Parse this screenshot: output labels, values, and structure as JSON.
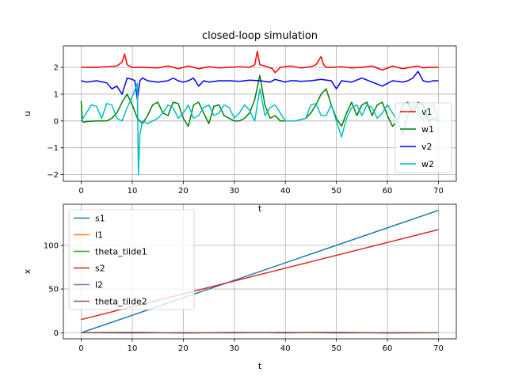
{
  "chart_data": [
    {
      "type": "line",
      "title": "closed-loop simulation",
      "xlabel": "t",
      "ylabel": "u",
      "xlim": [
        -3.5,
        73.5
      ],
      "ylim": [
        -2.25,
        2.8
      ],
      "xticks": [
        0,
        10,
        20,
        30,
        40,
        50,
        60,
        70
      ],
      "yticks": [
        -2,
        -1,
        0,
        1,
        2
      ],
      "xtick_labels": [
        "0",
        "10",
        "20",
        "30",
        "40",
        "50",
        "60",
        "70"
      ],
      "ytick_labels": [
        "−2",
        "−1",
        "0",
        "1",
        "2"
      ],
      "grid": true,
      "legend_position": "lower-right",
      "series": [
        {
          "name": "v1",
          "color": "#ff0000",
          "x": [
            0,
            3,
            5,
            7,
            8,
            8.5,
            9,
            10,
            12,
            15,
            17,
            19,
            21,
            23,
            25,
            27,
            29,
            31,
            33,
            34,
            34.5,
            35,
            36,
            37.5,
            38,
            39,
            41,
            43,
            45,
            46,
            47,
            47.5,
            48,
            49,
            51,
            53,
            55,
            57,
            59,
            61,
            63,
            65,
            66,
            67,
            68,
            70
          ],
          "y": [
            2.0,
            2.0,
            2.02,
            2.05,
            2.2,
            2.5,
            2.1,
            2.0,
            2.0,
            1.98,
            2.05,
            1.95,
            2.05,
            1.95,
            2.02,
            1.98,
            2.0,
            2.02,
            2.0,
            2.1,
            2.6,
            2.1,
            2.05,
            1.95,
            1.8,
            2.0,
            2.05,
            1.98,
            2.02,
            2.1,
            2.4,
            2.1,
            2.0,
            2.0,
            2.02,
            1.98,
            2.0,
            2.05,
            1.9,
            2.05,
            1.95,
            2.02,
            2.05,
            1.98,
            2.0,
            2.0
          ]
        },
        {
          "name": "w1",
          "color": "#008000",
          "x": [
            0,
            0.2,
            0.5,
            1,
            3,
            5,
            6,
            7,
            8,
            9,
            10,
            11,
            12,
            13,
            14,
            15,
            16,
            17,
            18,
            19,
            20,
            21,
            22,
            23,
            24,
            25,
            26,
            27,
            28,
            29,
            30,
            31,
            32,
            33,
            34,
            35,
            36,
            37,
            38,
            39,
            40,
            41,
            42,
            43,
            44,
            45,
            46,
            47,
            48,
            49,
            50,
            51,
            52,
            53,
            54,
            55,
            56,
            57,
            58,
            59,
            60,
            61,
            62,
            63,
            64,
            65,
            66,
            67,
            68,
            69,
            70
          ],
          "y": [
            0.75,
            0.0,
            -0.05,
            -0.02,
            0.0,
            0.0,
            0.1,
            0.3,
            0.7,
            1.0,
            0.6,
            0.1,
            -0.1,
            0.2,
            0.6,
            0.7,
            0.3,
            0.2,
            0.7,
            0.65,
            0.1,
            -0.2,
            0.6,
            0.7,
            0.3,
            -0.1,
            0.55,
            0.6,
            0.2,
            0.1,
            0.0,
            0.0,
            0.1,
            0.3,
            0.8,
            1.7,
            0.6,
            0.1,
            0.2,
            0.0,
            0.0,
            0.0,
            0.0,
            0.05,
            0.1,
            0.3,
            0.6,
            1.0,
            1.2,
            0.6,
            0.1,
            -0.2,
            0.3,
            0.7,
            0.2,
            0.6,
            0.7,
            0.2,
            0.6,
            0.7,
            0.2,
            -0.2,
            0.0,
            0.6,
            0.7,
            0.3,
            0.7,
            0.6,
            0.0,
            0.1,
            0.0
          ]
        },
        {
          "name": "v2",
          "color": "#0000ff",
          "x": [
            0,
            1,
            3,
            5,
            6,
            7,
            8,
            9,
            10,
            10.5,
            11,
            11.5,
            12,
            13,
            15,
            17,
            18,
            19,
            20,
            21,
            22,
            23,
            24,
            25,
            27,
            29,
            31,
            33,
            35,
            37,
            38,
            39,
            40,
            41,
            42,
            43,
            45,
            47,
            49,
            50,
            51,
            53,
            55,
            57,
            59,
            61,
            63,
            64,
            65,
            66,
            67,
            68,
            69,
            70
          ],
          "y": [
            1.5,
            1.45,
            1.5,
            1.42,
            1.2,
            1.3,
            1.0,
            1.6,
            1.55,
            1.5,
            0.8,
            1.5,
            1.6,
            1.5,
            1.45,
            1.5,
            1.6,
            1.5,
            1.45,
            1.5,
            1.6,
            1.3,
            1.5,
            1.45,
            1.5,
            1.5,
            1.48,
            1.52,
            1.5,
            1.45,
            1.55,
            1.5,
            1.45,
            1.5,
            1.5,
            1.48,
            1.5,
            1.55,
            1.5,
            1.2,
            1.5,
            1.45,
            1.6,
            1.45,
            1.3,
            1.5,
            1.45,
            1.5,
            1.6,
            1.85,
            1.5,
            1.45,
            1.5,
            1.5
          ]
        },
        {
          "name": "w2",
          "color": "#00bfbf",
          "x": [
            0,
            0.5,
            1,
            2,
            3,
            4,
            5,
            6,
            7,
            8,
            9,
            10,
            11,
            11.2,
            11.5,
            12,
            13,
            14,
            15,
            16,
            17,
            18,
            19,
            20,
            21,
            22,
            23,
            24,
            25,
            26,
            27,
            28,
            29,
            30,
            31,
            32,
            33,
            34,
            35,
            36,
            37,
            38,
            39,
            40,
            41,
            42,
            43,
            44,
            45,
            46,
            47,
            48,
            49,
            50,
            51,
            52,
            53,
            54,
            55,
            56,
            57,
            58,
            59,
            60,
            61,
            62,
            63,
            64,
            65,
            66,
            67,
            68,
            69,
            70
          ],
          "y": [
            0.0,
            0.15,
            0.3,
            0.6,
            0.55,
            0.1,
            0.65,
            0.6,
            0.1,
            0.0,
            0.5,
            0.9,
            1.4,
            -2.0,
            -0.5,
            0.0,
            -0.1,
            0.0,
            0.1,
            0.3,
            0.6,
            0.5,
            0.1,
            0.3,
            0.6,
            0.1,
            0.2,
            0.5,
            0.6,
            0.2,
            0.3,
            0.6,
            0.5,
            0.1,
            0.3,
            0.6,
            0.4,
            0.0,
            1.2,
            0.2,
            0.5,
            0.6,
            0.3,
            0.0,
            0.0,
            0.0,
            0.05,
            0.1,
            0.6,
            0.65,
            0.2,
            0.2,
            0.6,
            0.0,
            -0.6,
            0.1,
            0.5,
            0.6,
            0.2,
            0.6,
            0.5,
            0.1,
            0.3,
            0.6,
            0.3,
            0.0,
            -0.5,
            0.2,
            0.6,
            0.5,
            0.0,
            0.5,
            0.6,
            0.0
          ]
        }
      ]
    },
    {
      "type": "line",
      "title": "",
      "xlabel": "t",
      "ylabel": "x",
      "xlim": [
        -3.5,
        73.5
      ],
      "ylim": [
        -7,
        147
      ],
      "xticks": [
        0,
        10,
        20,
        30,
        40,
        50,
        60,
        70
      ],
      "yticks": [
        0,
        50,
        100
      ],
      "xtick_labels": [
        "0",
        "10",
        "20",
        "30",
        "40",
        "50",
        "60",
        "70"
      ],
      "ytick_labels": [
        "0",
        "50",
        "100"
      ],
      "grid": true,
      "legend_position": "upper-left",
      "series": [
        {
          "name": "s1",
          "color": "#1f77b4",
          "x": [
            0,
            70
          ],
          "y": [
            0,
            140
          ]
        },
        {
          "name": "l1",
          "color": "#ff7f0e",
          "x": [
            0,
            70
          ],
          "y": [
            0,
            0
          ]
        },
        {
          "name": "theta_tilde1",
          "color": "#2ca02c",
          "x": [
            0,
            10,
            20,
            30,
            40,
            50,
            60,
            70
          ],
          "y": [
            0,
            0.3,
            -0.2,
            0.2,
            0,
            0.3,
            -0.1,
            0
          ]
        },
        {
          "name": "s2",
          "color": "#d62728",
          "x": [
            0,
            70
          ],
          "y": [
            15,
            118
          ]
        },
        {
          "name": "l2",
          "color": "#9467bd",
          "x": [
            0,
            10,
            20,
            30,
            40,
            50,
            60,
            70
          ],
          "y": [
            0,
            -0.3,
            0.2,
            -0.2,
            0.4,
            -0.3,
            0.2,
            0
          ]
        },
        {
          "name": "theta_tilde2",
          "color": "#8c564b",
          "x": [
            0,
            10,
            20,
            30,
            40,
            50,
            60,
            70
          ],
          "y": [
            0,
            0.4,
            -0.3,
            0.3,
            -0.2,
            0.3,
            -0.3,
            0
          ]
        }
      ]
    }
  ]
}
